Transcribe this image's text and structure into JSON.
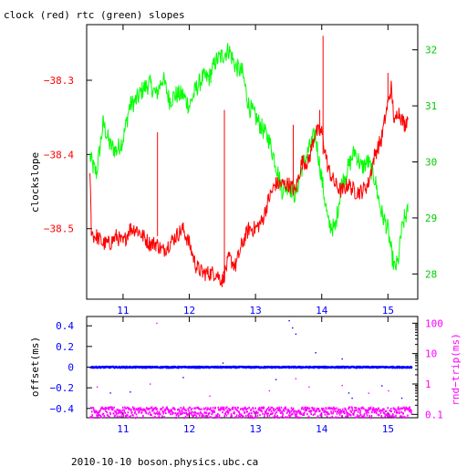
{
  "colors": {
    "clock": "#ff0000",
    "rtc": "#00ff00",
    "offset": "#0000ff",
    "rndtrip": "#ff00ff",
    "axes": "#000000",
    "background": "#ffffff"
  },
  "footer": "2010-10-10 boson.physics.ubc.ca",
  "chart_data": [
    {
      "type": "line",
      "title": "clock (red) rtc (green) slopes",
      "ylabel": "clockslope",
      "xlim": [
        10.45,
        15.45
      ],
      "ylim": [
        -38.595,
        -38.225
      ],
      "y2lim": [
        27.55,
        32.45
      ],
      "x_ticks": [
        11,
        12,
        13,
        14,
        15
      ],
      "x_tick_labels": [
        "11",
        "12",
        "13",
        "14",
        "15"
      ],
      "y_ticks": [
        -38.3,
        -38.4,
        -38.5
      ],
      "y_tick_labels": [
        "−38.3",
        "−38.4",
        "−38.5"
      ],
      "y2_ticks": [
        28,
        29,
        30,
        31,
        32
      ],
      "y2_tick_labels": [
        "28",
        "29",
        "30",
        "31",
        "32"
      ],
      "series": [
        {
          "axis": "left",
          "color": "#ff0000",
          "x": [
            10.5,
            10.52,
            10.55,
            10.6,
            10.7,
            10.8,
            10.9,
            11.0,
            11.1,
            11.2,
            11.3,
            11.4,
            11.5,
            11.6,
            11.7,
            11.8,
            11.9,
            12.0,
            12.1,
            12.2,
            12.3,
            12.4,
            12.5,
            12.6,
            12.7,
            12.8,
            12.9,
            13.0,
            13.1,
            13.2,
            13.3,
            13.4,
            13.5,
            13.6,
            13.7,
            13.8,
            13.9,
            14.0,
            14.1,
            14.2,
            14.3,
            14.4,
            14.5,
            14.6,
            14.7,
            14.8,
            14.9,
            15.0,
            15.05,
            15.1,
            15.15,
            15.2,
            15.25,
            15.3
          ],
          "y": [
            -38.42,
            -38.5,
            -38.51,
            -38.51,
            -38.52,
            -38.52,
            -38.51,
            -38.52,
            -38.5,
            -38.5,
            -38.51,
            -38.52,
            -38.52,
            -38.53,
            -38.52,
            -38.51,
            -38.5,
            -38.52,
            -38.55,
            -38.56,
            -38.56,
            -38.56,
            -38.57,
            -38.54,
            -38.55,
            -38.52,
            -38.5,
            -38.5,
            -38.49,
            -38.46,
            -38.44,
            -38.44,
            -38.44,
            -38.45,
            -38.41,
            -38.41,
            -38.37,
            -38.37,
            -38.42,
            -38.44,
            -38.45,
            -38.44,
            -38.45,
            -38.45,
            -38.44,
            -38.4,
            -38.38,
            -38.33,
            -38.31,
            -38.36,
            -38.34,
            -38.35,
            -38.36,
            -38.35
          ]
        },
        {
          "axis": "right",
          "color": "#00ff00",
          "x": [
            10.5,
            10.55,
            10.6,
            10.7,
            10.8,
            10.9,
            11.0,
            11.1,
            11.2,
            11.3,
            11.4,
            11.5,
            11.6,
            11.7,
            11.8,
            11.9,
            12.0,
            12.1,
            12.2,
            12.3,
            12.4,
            12.5,
            12.6,
            12.7,
            12.8,
            12.9,
            13.0,
            13.1,
            13.2,
            13.3,
            13.4,
            13.5,
            13.6,
            13.7,
            13.8,
            13.9,
            14.0,
            14.1,
            14.2,
            14.3,
            14.4,
            14.5,
            14.6,
            14.7,
            14.8,
            14.9,
            15.0,
            15.05,
            15.1,
            15.15,
            15.2,
            15.25,
            15.3
          ],
          "y": [
            30.1,
            29.9,
            29.8,
            30.7,
            30.3,
            30.2,
            30.4,
            31.0,
            31.1,
            31.3,
            31.4,
            31.2,
            31.5,
            31.1,
            31.2,
            31.2,
            31.0,
            31.3,
            31.5,
            31.5,
            31.8,
            31.9,
            32.0,
            31.7,
            31.6,
            31.0,
            30.8,
            30.6,
            30.4,
            30.0,
            29.5,
            29.6,
            29.4,
            29.9,
            30.2,
            30.5,
            29.7,
            28.9,
            28.8,
            29.6,
            29.9,
            30.2,
            29.9,
            30.0,
            29.7,
            29.1,
            28.8,
            28.4,
            28.1,
            28.2,
            28.7,
            29.0,
            29.1
          ]
        }
      ],
      "spikes": [
        {
          "axis": "left",
          "x": 11.52,
          "y0": -38.51,
          "y1": -38.37
        },
        {
          "axis": "left",
          "x": 12.53,
          "y0": -38.56,
          "y1": -38.34
        },
        {
          "axis": "left",
          "x": 13.57,
          "y0": -38.44,
          "y1": -38.36
        },
        {
          "axis": "left",
          "x": 13.97,
          "y0": -38.37,
          "y1": -38.34
        },
        {
          "axis": "left",
          "x": 14.02,
          "y0": -38.4,
          "y1": -38.24
        },
        {
          "axis": "left",
          "x": 15.0,
          "y0": -38.33,
          "y1": -38.29
        }
      ]
    },
    {
      "type": "scatter",
      "ylabel": "offset(ms)",
      "y2label": "rnd−trip(ms)",
      "xlim": [
        10.45,
        15.45
      ],
      "ylim": [
        -0.49,
        0.49
      ],
      "y2lim_log10": [
        -1.11,
        2.22
      ],
      "x_ticks": [
        11,
        12,
        13,
        14,
        15
      ],
      "x_tick_labels": [
        "11",
        "12",
        "13",
        "14",
        "15"
      ],
      "y_ticks": [
        0.4,
        0.2,
        0,
        -0.2,
        -0.4
      ],
      "y_tick_labels": [
        "0.4",
        "0.2",
        "0",
        "−0.2",
        "−0.4"
      ],
      "y2_ticks": [
        100,
        10,
        1,
        0.1
      ],
      "y2_tick_labels": [
        "100",
        "10",
        "1",
        "0.1"
      ],
      "series": [
        {
          "name": "offset",
          "axis": "left",
          "color": "#0000ff",
          "x_range": [
            10.5,
            15.35
          ],
          "baseline": 0.0,
          "spread": 0.006
        },
        {
          "name": "rnd-trip",
          "axis": "right",
          "color": "#ff00ff",
          "x_range": [
            10.5,
            15.35
          ],
          "baseline": 0.125,
          "spread": 0.012
        }
      ],
      "outliers": [
        {
          "series": "rnd-trip",
          "x": 10.6,
          "y": 0.8
        },
        {
          "series": "rnd-trip",
          "x": 11.4,
          "y": 1.0
        },
        {
          "series": "rnd-trip",
          "x": 11.5,
          "y": 100
        },
        {
          "series": "rnd-trip",
          "x": 12.3,
          "y": 0.4
        },
        {
          "series": "rnd-trip",
          "x": 13.2,
          "y": 0.6
        },
        {
          "series": "rnd-trip",
          "x": 13.6,
          "y": 1.5
        },
        {
          "series": "rnd-trip",
          "x": 13.8,
          "y": 0.8
        },
        {
          "series": "rnd-trip",
          "x": 14.3,
          "y": 0.9
        },
        {
          "series": "rnd-trip",
          "x": 14.7,
          "y": 0.5
        },
        {
          "series": "rnd-trip",
          "x": 15.0,
          "y": 0.6
        },
        {
          "series": "offset",
          "x": 10.8,
          "y": -0.25
        },
        {
          "series": "offset",
          "x": 11.1,
          "y": -0.24
        },
        {
          "series": "offset",
          "x": 11.9,
          "y": -0.1
        },
        {
          "series": "offset",
          "x": 12.5,
          "y": 0.04
        },
        {
          "series": "offset",
          "x": 13.3,
          "y": -0.12
        },
        {
          "series": "offset",
          "x": 13.5,
          "y": 0.45
        },
        {
          "series": "offset",
          "x": 13.55,
          "y": 0.38
        },
        {
          "series": "offset",
          "x": 13.6,
          "y": 0.32
        },
        {
          "series": "offset",
          "x": 13.9,
          "y": 0.14
        },
        {
          "series": "offset",
          "x": 14.3,
          "y": 0.08
        },
        {
          "series": "offset",
          "x": 14.4,
          "y": -0.25
        },
        {
          "series": "offset",
          "x": 14.45,
          "y": -0.3
        },
        {
          "series": "offset",
          "x": 14.9,
          "y": -0.18
        },
        {
          "series": "offset",
          "x": 15.2,
          "y": -0.3
        }
      ]
    }
  ]
}
